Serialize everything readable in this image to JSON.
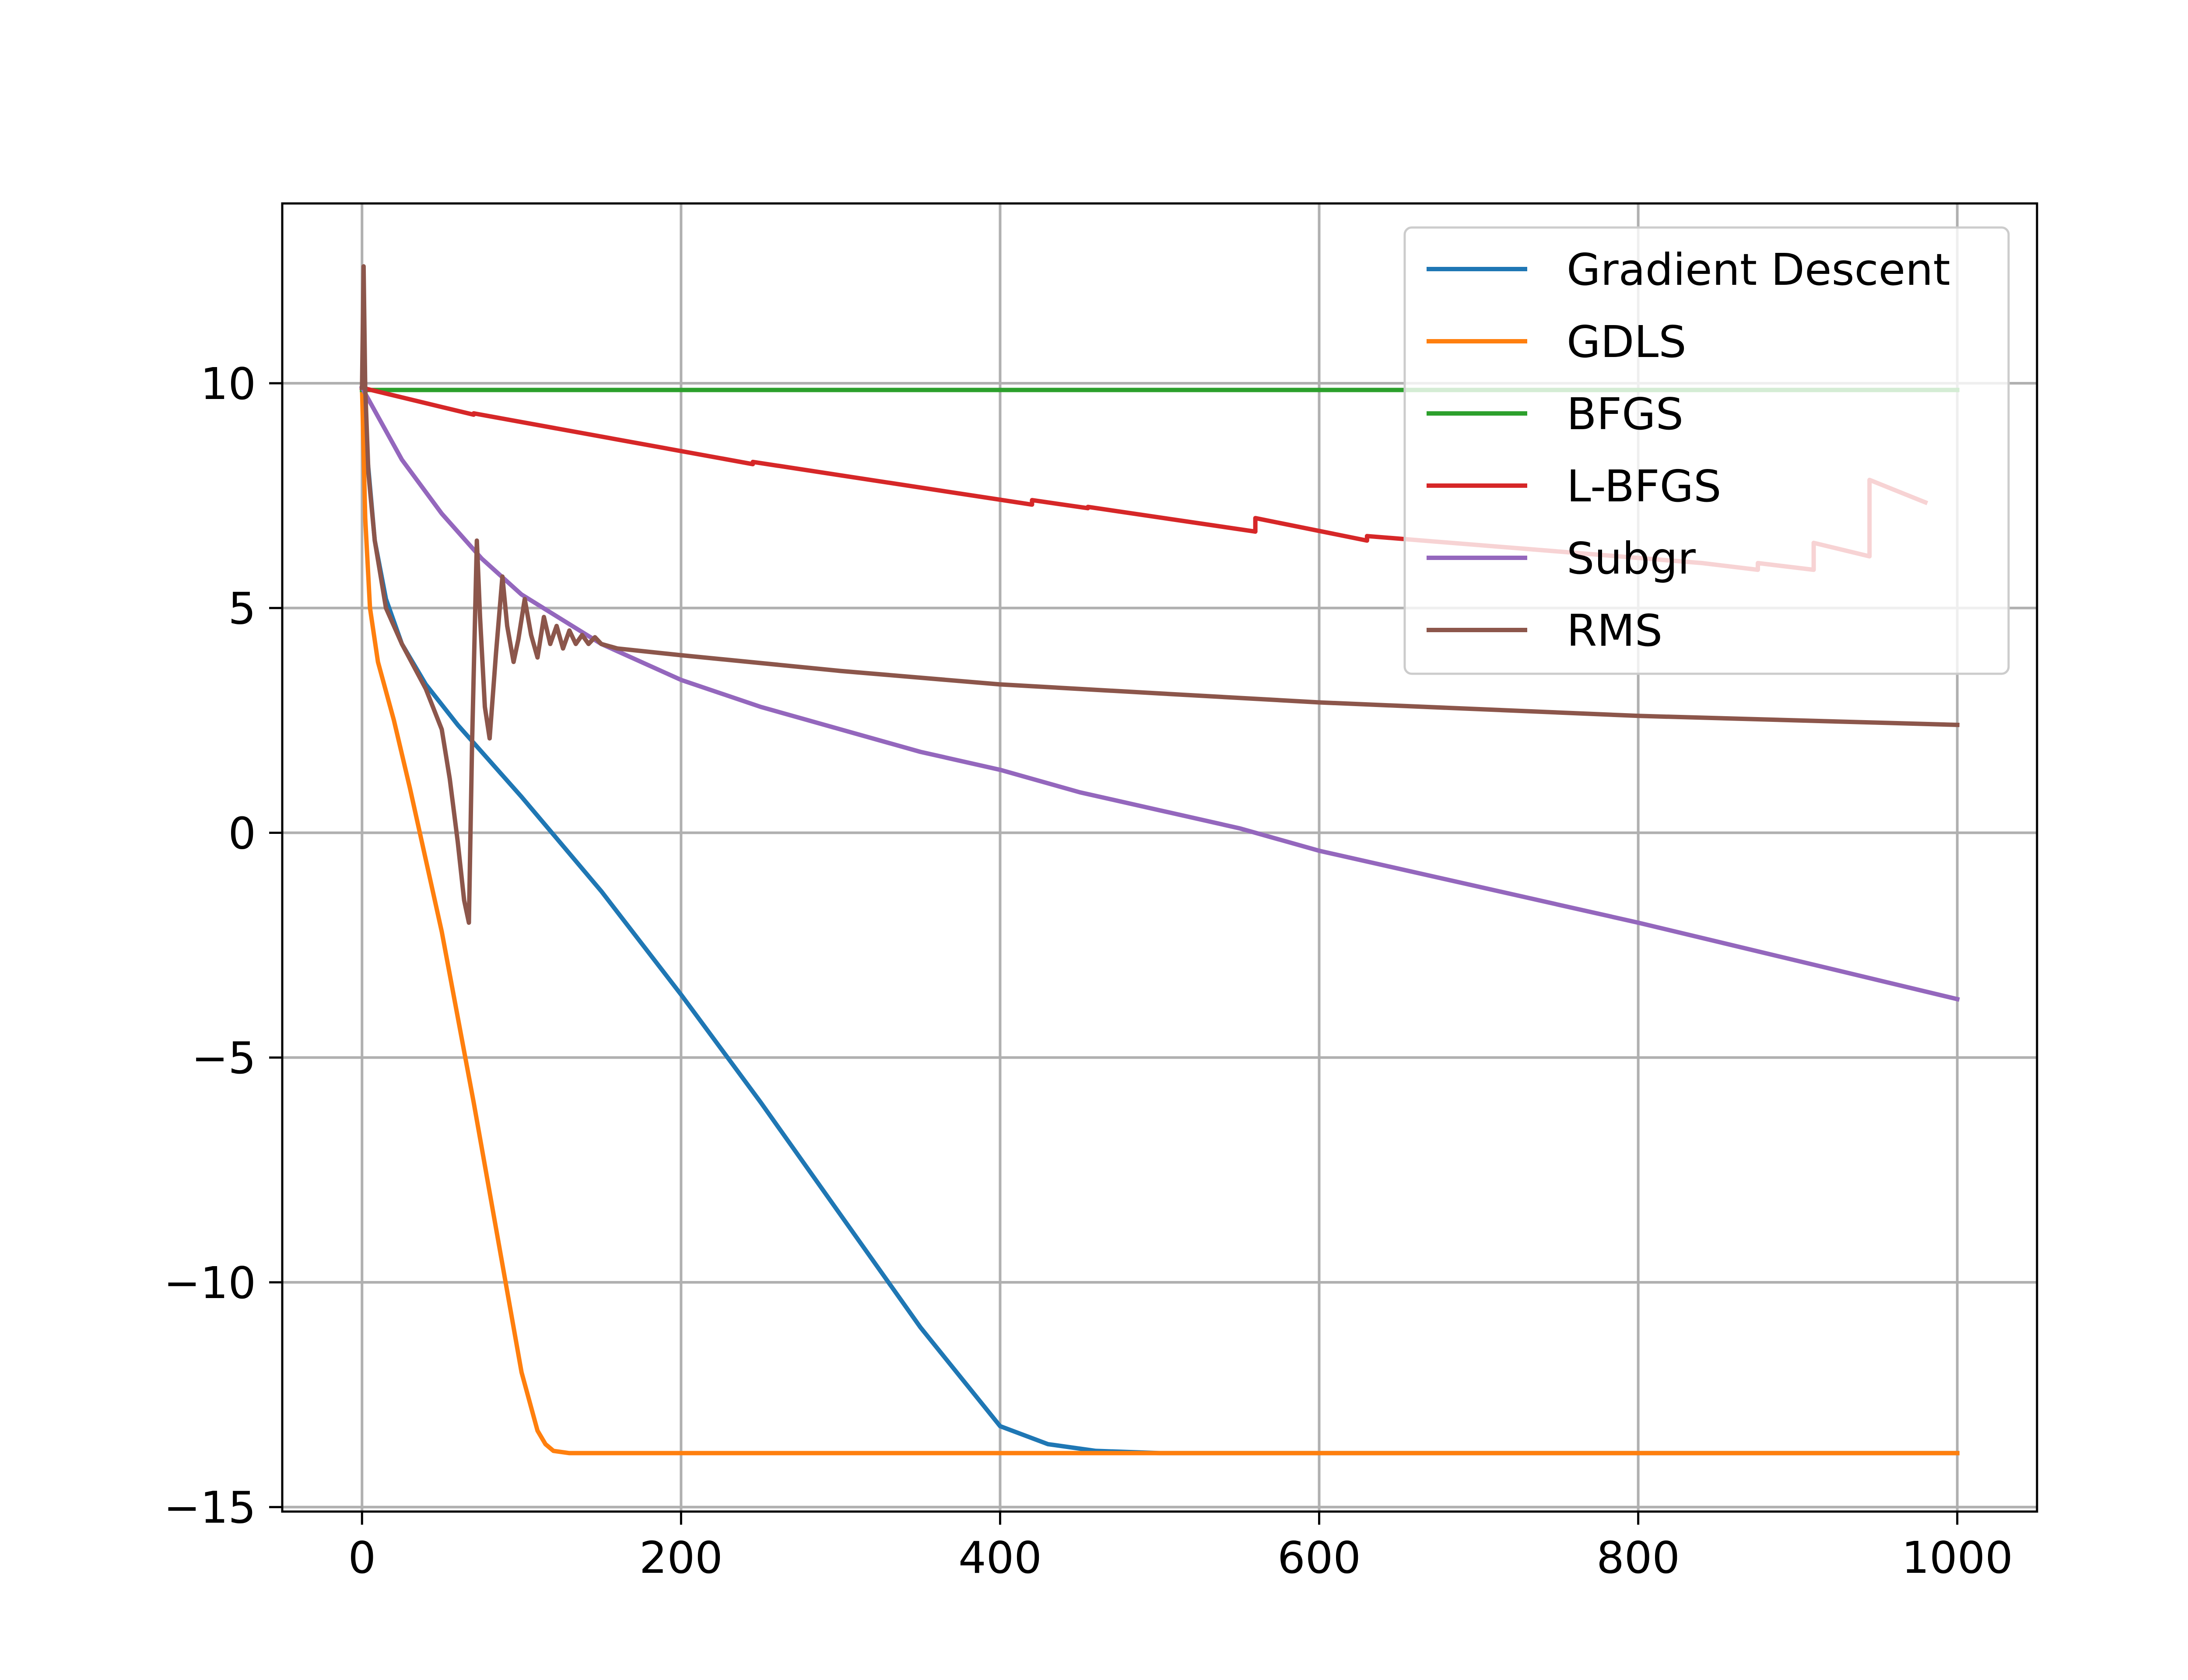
{
  "chart_data": {
    "type": "line",
    "title": "",
    "xlabel": "",
    "ylabel": "",
    "xlim": [
      -50,
      1050
    ],
    "ylim": [
      -15.1,
      14.0
    ],
    "xticks": [
      0,
      200,
      400,
      600,
      800,
      1000
    ],
    "xtick_labels": [
      "0",
      "200",
      "400",
      "600",
      "800",
      "1000"
    ],
    "yticks": [
      -15,
      -10,
      -5,
      0,
      5,
      10
    ],
    "ytick_labels": [
      "−15",
      "−10",
      "−5",
      "0",
      "5",
      "10"
    ],
    "grid": true,
    "legend_position": "top-right",
    "series": [
      {
        "name": "Gradient Descent",
        "color": "#1f77b4",
        "x": [
          0,
          3,
          8,
          15,
          25,
          40,
          60,
          80,
          100,
          150,
          200,
          250,
          300,
          350,
          400,
          430,
          460,
          500,
          540,
          1000
        ],
        "y": [
          9.9,
          8.5,
          6.5,
          5.2,
          4.2,
          3.3,
          2.4,
          1.6,
          0.8,
          -1.3,
          -3.6,
          -6.0,
          -8.5,
          -11.0,
          -13.2,
          -13.6,
          -13.75,
          -13.8,
          -13.8,
          -13.8
        ]
      },
      {
        "name": "GDLS",
        "color": "#ff7f0e",
        "x": [
          0,
          2,
          5,
          10,
          20,
          30,
          50,
          70,
          90,
          100,
          110,
          115,
          120,
          130,
          140,
          1000
        ],
        "y": [
          9.9,
          7.0,
          5.0,
          3.8,
          2.5,
          1.0,
          -2.2,
          -6.0,
          -10.0,
          -12.0,
          -13.3,
          -13.6,
          -13.75,
          -13.8,
          -13.8,
          -13.8
        ]
      },
      {
        "name": "BFGS",
        "color": "#2ca02c",
        "x": [
          0,
          1000
        ],
        "y": [
          9.85,
          9.85
        ]
      },
      {
        "name": "L-BFGS",
        "color": "#d62728",
        "x": [
          0,
          70,
          70,
          245,
          245,
          420,
          420,
          455,
          455,
          560,
          560,
          630,
          630,
          840,
          840,
          875,
          875,
          910,
          910,
          945,
          945,
          980
        ],
        "y": [
          9.9,
          9.3,
          9.33,
          8.2,
          8.25,
          7.3,
          7.4,
          7.22,
          7.25,
          6.7,
          7.0,
          6.5,
          6.6,
          6.0,
          6.0,
          5.85,
          6.0,
          5.85,
          6.45,
          6.15,
          7.85,
          7.35
        ]
      },
      {
        "name": "Subgr",
        "color": "#9467bd",
        "x": [
          0,
          25,
          50,
          75,
          100,
          150,
          200,
          250,
          300,
          350,
          400,
          450,
          500,
          550,
          600,
          700,
          800,
          900,
          1000
        ],
        "y": [
          9.9,
          8.3,
          7.1,
          6.1,
          5.3,
          4.2,
          3.4,
          2.8,
          2.3,
          1.8,
          1.4,
          0.9,
          0.5,
          0.1,
          -0.4,
          -1.2,
          -2.0,
          -2.85,
          -3.7
        ]
      },
      {
        "name": "RMS",
        "color": "#8c564b",
        "x": [
          0,
          1,
          2,
          4,
          8,
          15,
          25,
          40,
          50,
          55,
          60,
          64,
          67,
          69,
          72,
          74,
          77,
          80,
          84,
          88,
          91,
          95,
          98,
          102,
          106,
          110,
          114,
          118,
          122,
          126,
          130,
          134,
          138,
          142,
          146,
          150,
          160,
          200,
          300,
          400,
          500,
          600,
          700,
          800,
          900,
          1000
        ],
        "y": [
          9.9,
          12.6,
          9.9,
          8.0,
          6.5,
          5.0,
          4.2,
          3.2,
          2.3,
          1.2,
          -0.2,
          -1.5,
          -2.0,
          2.0,
          6.5,
          4.8,
          2.8,
          2.1,
          4.0,
          5.7,
          4.6,
          3.8,
          4.3,
          5.2,
          4.4,
          3.9,
          4.8,
          4.2,
          4.6,
          4.1,
          4.5,
          4.2,
          4.4,
          4.2,
          4.35,
          4.2,
          4.1,
          3.95,
          3.6,
          3.3,
          3.1,
          2.9,
          2.75,
          2.6,
          2.5,
          2.4
        ]
      }
    ]
  }
}
